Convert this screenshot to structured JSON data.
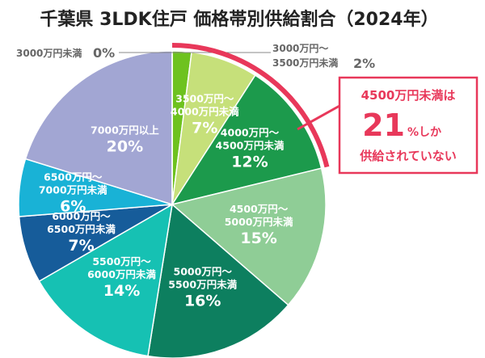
{
  "chart_data": {
    "type": "pie",
    "title": "千葉県 3LDK住戸 価格帯別供給割合（2024年）",
    "slices": [
      {
        "label": "3000万円未満",
        "value": 0,
        "value_label": "0%",
        "color": "#9a9a9a"
      },
      {
        "label_lines": [
          "3000万円～",
          "3500万円未満"
        ],
        "value": 2,
        "value_label": "2%",
        "color": "#6ec21f"
      },
      {
        "label_lines": [
          "3500万円～",
          "4000万円未満"
        ],
        "value": 7,
        "value_label": "7%",
        "color": "#c6e07a"
      },
      {
        "label_lines": [
          "4000万円～",
          "4500万円未満"
        ],
        "value": 12,
        "value_label": "12%",
        "color": "#1c9a4c"
      },
      {
        "label_lines": [
          "4500万円～",
          "5000万円未満"
        ],
        "value": 15,
        "value_label": "15%",
        "color": "#8fcd96"
      },
      {
        "label_lines": [
          "5000万円～",
          "5500万円未満"
        ],
        "value": 16,
        "value_label": "16%",
        "color": "#0d7f5f"
      },
      {
        "label_lines": [
          "5500万円～",
          "6000万円未満"
        ],
        "value": 14,
        "value_label": "14%",
        "color": "#16c1b3"
      },
      {
        "label_lines": [
          "6000万円～",
          "6500万円未満"
        ],
        "value": 7,
        "value_label": "7%",
        "color": "#165c9a"
      },
      {
        "label_lines": [
          "6500万円～",
          "7000万円未満"
        ],
        "value": 6,
        "value_label": "6%",
        "color": "#19b2d6"
      },
      {
        "label_lines": [
          "7000万円以上"
        ],
        "value": 20,
        "value_label": "20%",
        "color": "#a2a6d3"
      }
    ],
    "callout": {
      "line1": "4500万円未満は",
      "big_number": "21",
      "suffix": "%しか",
      "line3": "供給されていない",
      "color": "#e8385a"
    }
  }
}
